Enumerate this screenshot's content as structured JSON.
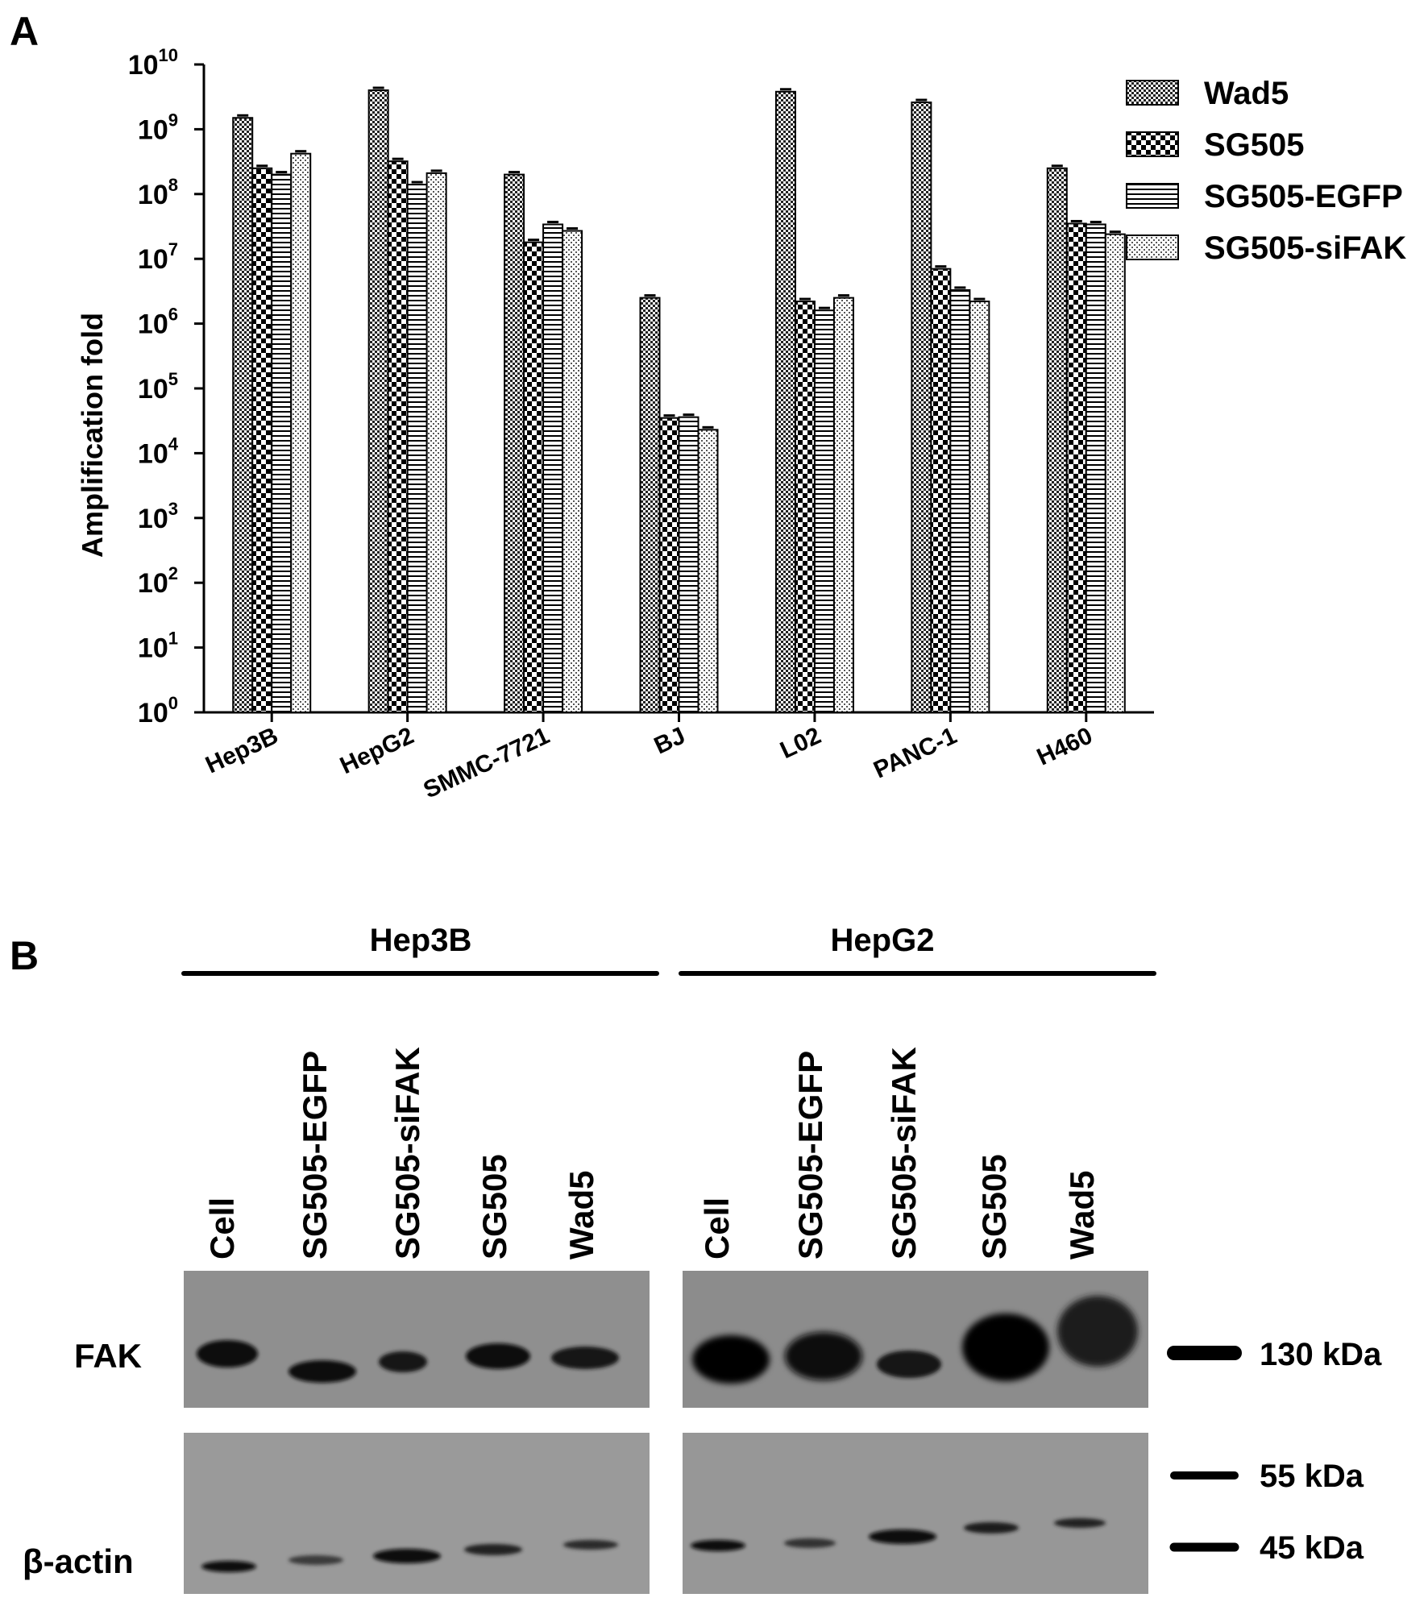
{
  "panels": {
    "a_label": "A",
    "b_label": "B"
  },
  "chart_data": {
    "type": "bar",
    "log_scale": true,
    "ylabel": "Amplification fold",
    "xlabel": "",
    "ylim": [
      1,
      10000000000
    ],
    "ytick_exponents": [
      "0",
      "1",
      "2",
      "3",
      "4",
      "5",
      "6",
      "7",
      "8",
      "9",
      "10"
    ],
    "ytick_base": "10",
    "categories": [
      "Hep3B",
      "HepG2",
      "SMMC-7721",
      "BJ",
      "L02",
      "PANC-1",
      "H460"
    ],
    "series": [
      {
        "name": "Wad5",
        "values": [
          1500000000,
          4000000000,
          200000000,
          2500000,
          3800000000,
          2600000000,
          250000000
        ]
      },
      {
        "name": "SG505",
        "values": [
          250000000,
          320000000,
          18000000,
          35000,
          2200000,
          7000000,
          35000000
        ]
      },
      {
        "name": "SG505-EGFP",
        "values": [
          200000000,
          140000000,
          34000000,
          36000,
          1600000,
          3300000,
          34000000
        ]
      },
      {
        "name": "SG505-siFAK",
        "values": [
          420000000,
          210000000,
          27000000,
          23000,
          2500000,
          2200000,
          24000000
        ]
      }
    ],
    "legend_position": "top-right",
    "grid": false,
    "error_bars": true,
    "x_tick_rotation": "angled"
  },
  "western_blot": {
    "groups": [
      {
        "name": "Hep3B",
        "lanes": [
          "Cell",
          "SG505-EGFP",
          "SG505-siFAK",
          "SG505",
          "Wad5"
        ]
      },
      {
        "name": "HepG2",
        "lanes": [
          "Cell",
          "SG505-EGFP",
          "SG505-siFAK",
          "SG505",
          "Wad5"
        ]
      }
    ],
    "rows": [
      "FAK",
      "β-actin"
    ],
    "markers": [
      "130 kDa",
      "55 kDa",
      "45 kDa"
    ]
  }
}
